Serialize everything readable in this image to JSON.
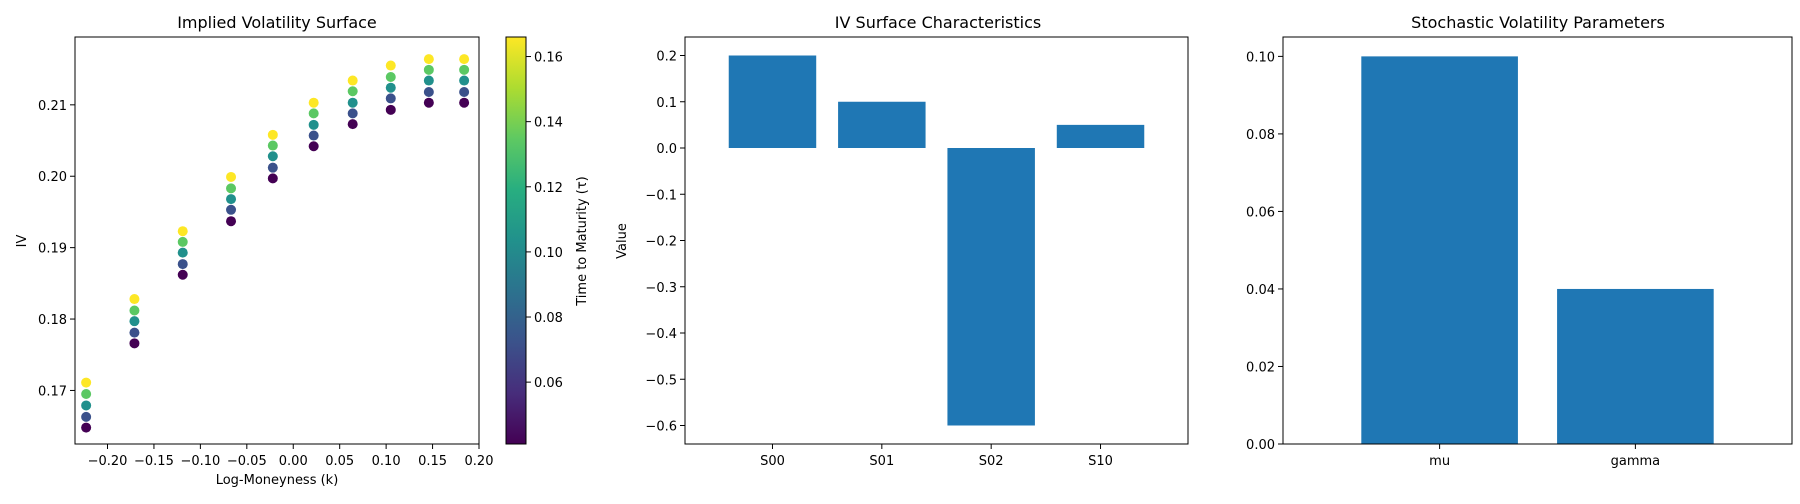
{
  "chart_data": [
    {
      "type": "scatter",
      "title": "Implied Volatility Surface",
      "xlabel": "Log-Moneyness (k)",
      "ylabel": "IV",
      "xlim": [
        -0.235,
        0.2
      ],
      "ylim": [
        0.1625,
        0.2195
      ],
      "xticks": [
        -0.2,
        -0.15,
        -0.1,
        -0.05,
        0.0,
        0.05,
        0.1,
        0.15,
        0.2
      ],
      "xtick_labels": [
        "−0.20",
        "−0.15",
        "−0.10",
        "−0.05",
        "0.00",
        "0.05",
        "0.10",
        "0.15",
        "0.20"
      ],
      "yticks": [
        0.17,
        0.18,
        0.19,
        0.2,
        0.21
      ],
      "ytick_labels": [
        "0.17",
        "0.18",
        "0.19",
        "0.20",
        "0.21"
      ],
      "grid": false,
      "colorbar": {
        "label": "Time to Maturity (τ)",
        "colormap": "viridis",
        "range": [
          0.041,
          0.166
        ],
        "ticks": [
          0.06,
          0.08,
          0.1,
          0.12,
          0.14,
          0.16
        ],
        "tick_labels": [
          "0.06",
          "0.08",
          "0.10",
          "0.12",
          "0.14",
          "0.16"
        ]
      },
      "k": [
        -0.223,
        -0.171,
        -0.119,
        -0.067,
        -0.022,
        0.022,
        0.064,
        0.105,
        0.146,
        0.184
      ],
      "tau": [
        0.041,
        0.072,
        0.103,
        0.134,
        0.166
      ],
      "iv": [
        [
          0.1648,
          0.1663,
          0.1679,
          0.1695,
          0.1711
        ],
        [
          0.1766,
          0.1781,
          0.1797,
          0.1812,
          0.1828
        ],
        [
          0.1862,
          0.1877,
          0.1893,
          0.1908,
          0.1923
        ],
        [
          0.1937,
          0.1953,
          0.1968,
          0.1983,
          0.1999
        ],
        [
          0.1997,
          0.2012,
          0.2028,
          0.2043,
          0.2058
        ],
        [
          0.2042,
          0.2057,
          0.2072,
          0.2088,
          0.2103
        ],
        [
          0.2073,
          0.2088,
          0.2103,
          0.2119,
          0.2134
        ],
        [
          0.2093,
          0.2109,
          0.2124,
          0.2139,
          0.2155
        ],
        [
          0.2103,
          0.2118,
          0.2134,
          0.2149,
          0.2164
        ],
        [
          0.2103,
          0.2118,
          0.2134,
          0.2149,
          0.2164
        ]
      ]
    },
    {
      "type": "bar",
      "title": "IV Surface Characteristics",
      "xlabel": "",
      "ylabel": "Value",
      "categories": [
        "S00",
        "S01",
        "S02",
        "S10"
      ],
      "values": [
        0.2,
        0.1,
        -0.6,
        0.05
      ],
      "ylim": [
        -0.64,
        0.24
      ],
      "yticks": [
        0.2,
        0.1,
        0.0,
        -0.1,
        -0.2,
        -0.3,
        -0.4,
        -0.5,
        -0.6
      ],
      "ytick_labels": [
        "0.2",
        "0.1",
        "0.0",
        "−0.1",
        "−0.2",
        "−0.3",
        "−0.4",
        "−0.5",
        "−0.6"
      ],
      "color": "#1f77b4",
      "grid": false
    },
    {
      "type": "bar",
      "title": "Stochastic Volatility Parameters",
      "xlabel": "",
      "ylabel": "",
      "categories": [
        "mu",
        "gamma"
      ],
      "values": [
        0.1,
        0.04
      ],
      "ylim": [
        0,
        0.105
      ],
      "yticks": [
        0.0,
        0.02,
        0.04,
        0.06,
        0.08,
        0.1
      ],
      "ytick_labels": [
        "0.00",
        "0.02",
        "0.04",
        "0.06",
        "0.08",
        "0.10"
      ],
      "color": "#1f77b4",
      "grid": false
    }
  ]
}
